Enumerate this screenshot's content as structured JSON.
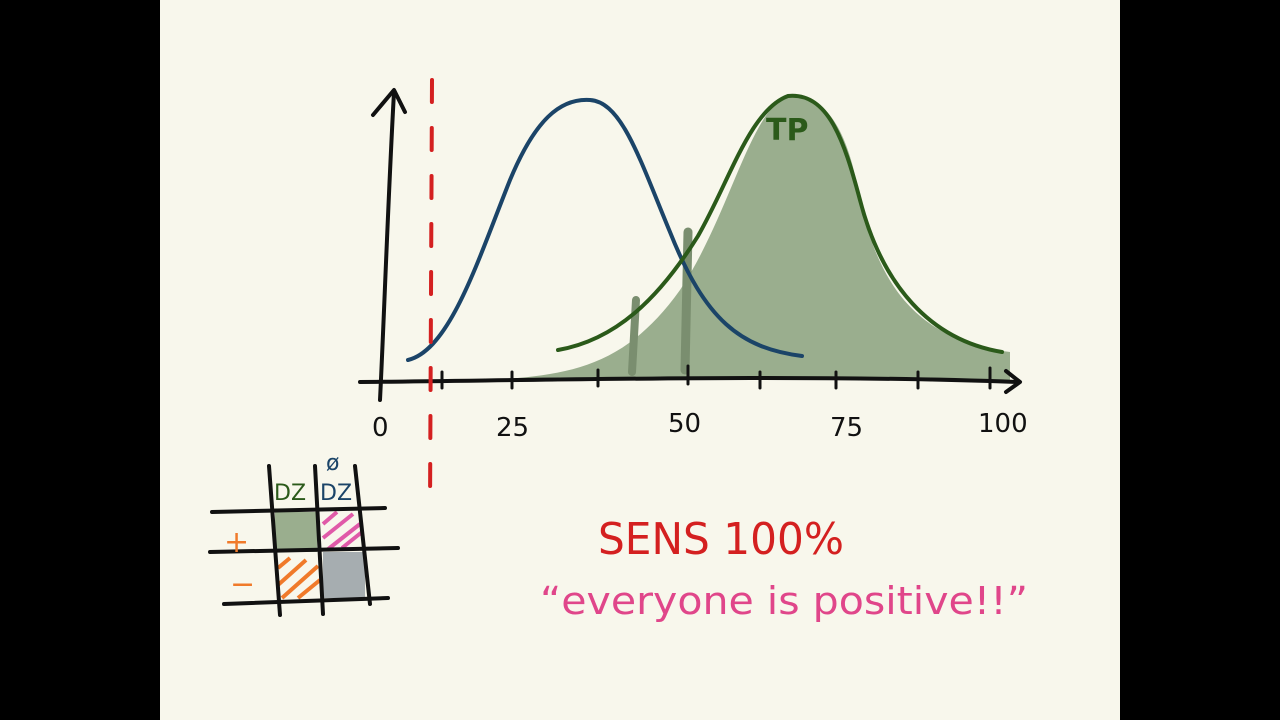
{
  "colors": {
    "background": "#f8f7ec",
    "letterbox": "#000000",
    "axis": "#111111",
    "healthy_curve": "#1b4468",
    "disease_curve": "#2b5a1a",
    "disease_fill": "#9aae8e",
    "cutoff": "#d42020",
    "headline": "#d42020",
    "quote": "#e0468a",
    "fp_hatch": "#e05aa8",
    "fn_hatch": "#f07a2a",
    "tn_fill": "#a6adb0"
  },
  "axis": {
    "tick_labels": [
      "0",
      "25",
      "50",
      "75",
      "100"
    ]
  },
  "curves": {
    "disease_label": "TP"
  },
  "table": {
    "col_headers": [
      "DZ",
      "DZ"
    ],
    "col_header_strike": "ø",
    "row_headers": [
      "+",
      "−"
    ]
  },
  "headline": "SENS 100%",
  "quote": "“everyone is positive!!”"
}
